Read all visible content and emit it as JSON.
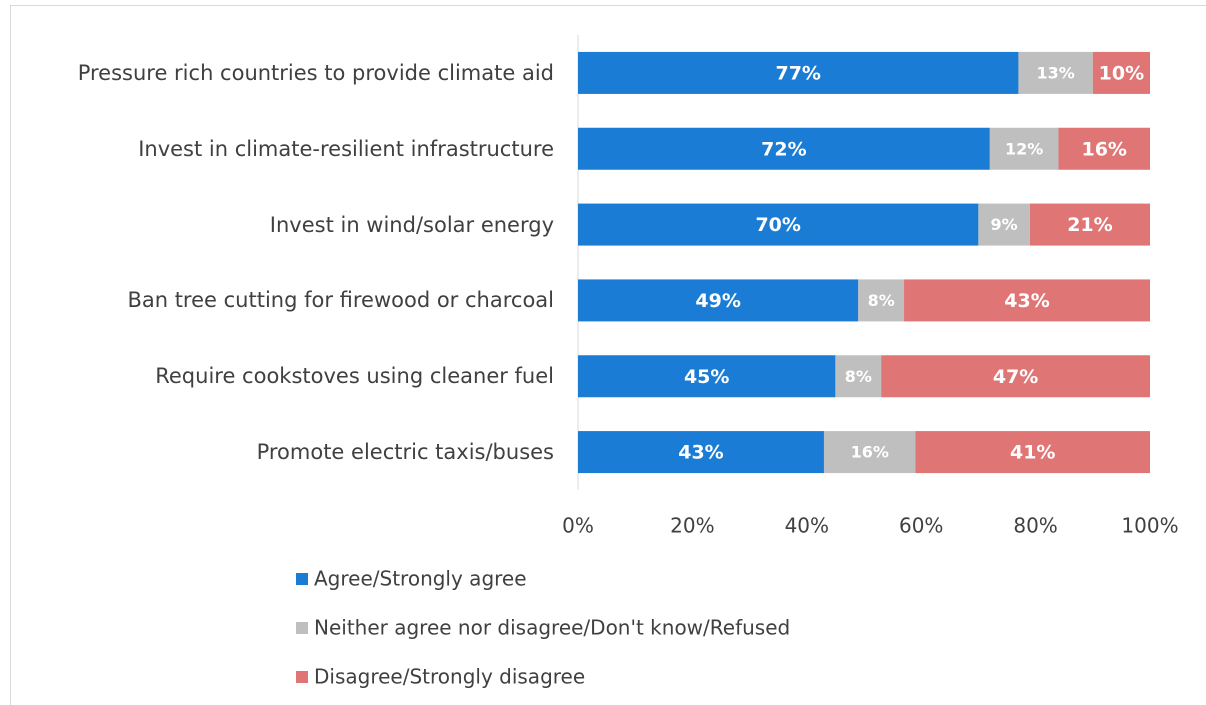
{
  "chart_data": {
    "type": "stacked_bar_horizontal",
    "categories": [
      "Pressure rich countries to provide climate aid",
      "Invest in climate-resilient infrastructure",
      "Invest in wind/solar energy",
      "Ban tree cutting for firewood or charcoal",
      "Require cookstoves using cleaner fuel",
      "Promote electric taxis/buses"
    ],
    "series": [
      {
        "name": "Agree/Strongly agree",
        "color": "#1b7cd5",
        "values": [
          77,
          72,
          70,
          49,
          45,
          43
        ],
        "value_labels": [
          "77%",
          "72%",
          "70%",
          "49%",
          "45%",
          "43%"
        ]
      },
      {
        "name": "Neither agree nor disagree/Don't know/Refused",
        "color": "#bfbfbf",
        "values": [
          13,
          12,
          9,
          8,
          8,
          16
        ],
        "value_labels": [
          "13%",
          "12%",
          "9%",
          "8%",
          "8%",
          "16%"
        ]
      },
      {
        "name": "Disagree/Strongly disagree",
        "color": "#e07575",
        "values": [
          10,
          16,
          21,
          43,
          47,
          41
        ],
        "value_labels": [
          "10%",
          "16%",
          "21%",
          "43%",
          "47%",
          "41%"
        ]
      }
    ],
    "xlim": [
      0,
      100
    ],
    "xticks": [
      {
        "value": 0,
        "label": "0%"
      },
      {
        "value": 20,
        "label": "20%"
      },
      {
        "value": 40,
        "label": "40%"
      },
      {
        "value": 60,
        "label": "60%"
      },
      {
        "value": 80,
        "label": "80%"
      },
      {
        "value": 100,
        "label": "100%"
      }
    ],
    "legend": "bottom"
  }
}
